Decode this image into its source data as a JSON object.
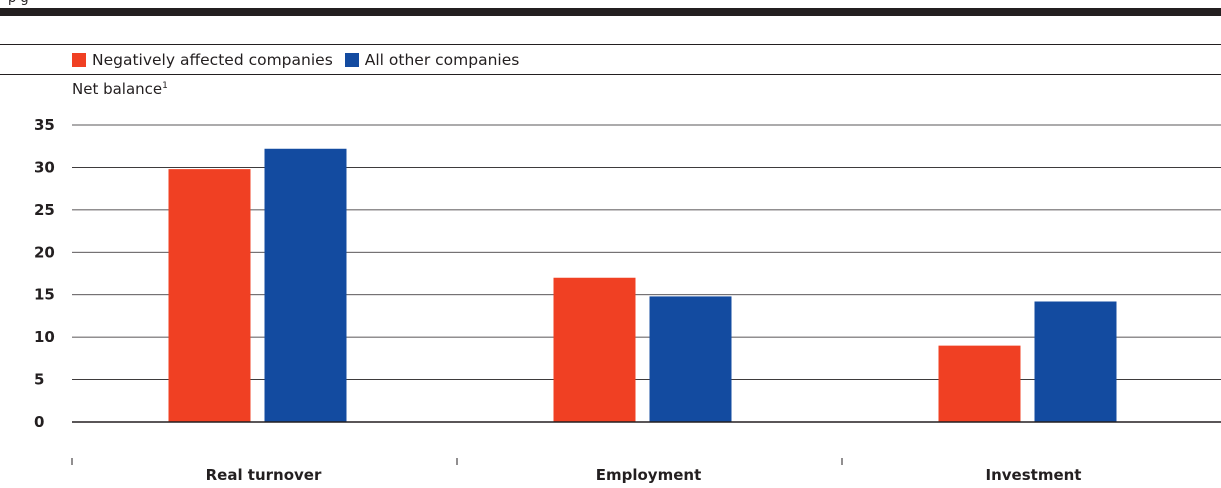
{
  "header": {
    "clipped_text": "p                                                    g"
  },
  "legend": [
    {
      "label": "Negatively affected companies",
      "color": "#f04023"
    },
    {
      "label": "All other companies",
      "color": "#134ba0"
    }
  ],
  "unit_label": "Net balance",
  "unit_footnote": "1",
  "chart_data": {
    "type": "bar",
    "title": "",
    "xlabel": "",
    "ylabel": "Net balance",
    "categories": [
      "Real turnover",
      "Employment",
      "Investment"
    ],
    "series": [
      {
        "name": "Negatively affected companies",
        "color": "#f04023",
        "values": [
          29.8,
          17.0,
          9.0
        ]
      },
      {
        "name": "All other companies",
        "color": "#134ba0",
        "values": [
          32.2,
          14.8,
          14.2
        ]
      }
    ],
    "ylim": [
      0,
      35
    ],
    "yticks": [
      0,
      5,
      10,
      15,
      20,
      25,
      30,
      35
    ],
    "grid": true,
    "legend_position": "top-left"
  }
}
